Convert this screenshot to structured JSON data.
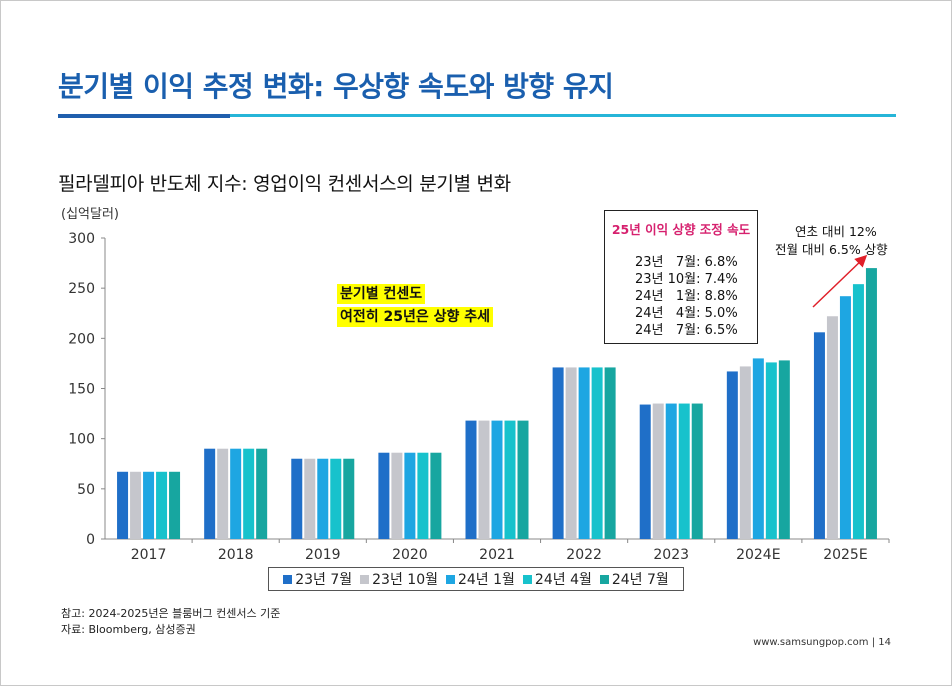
{
  "title": "분기별 이익 추정 변화: 우상향 속도와 방향 유지",
  "subtitle": "필라델피아 반도체 지수: 영업이익 컨센서스의 분기별 변화",
  "unit": "(십억달러)",
  "highlight": {
    "line1": "분기별 컨센도",
    "line2": "여전히 25년은 상향 추세"
  },
  "revision_box": {
    "title": "25년 이익 상향 조정 속도",
    "lines": [
      "23년   7월: 6.8%",
      "23년 10월: 7.4%",
      "24년   1월: 8.8%",
      "24년   4월: 5.0%",
      "24년   7월: 6.5%"
    ]
  },
  "annotation": {
    "line1": "연초 대비 12%",
    "line2": "전월 대비 6.5% 상향"
  },
  "footnote": "참고: 2024-2025년은 블룸버그 컨센서스 기준",
  "source": "자료: Bloomberg, 삼성증권",
  "page_footer": "www.samsungpop.com | 14",
  "colors": {
    "title": "#1a5fae",
    "arrow": "#e0202a"
  },
  "chart_data": {
    "type": "bar",
    "categories": [
      "2017",
      "2018",
      "2019",
      "2020",
      "2021",
      "2022",
      "2023",
      "2024E",
      "2025E"
    ],
    "series": [
      {
        "name": "23년 7월",
        "color": "#1f6fc8",
        "values": [
          67,
          90,
          80,
          86,
          118,
          171,
          134,
          167,
          206
        ]
      },
      {
        "name": "23년 10월",
        "color": "#c5c6cc",
        "values": [
          67,
          90,
          80,
          86,
          118,
          171,
          135,
          172,
          222
        ]
      },
      {
        "name": "24년 1월",
        "color": "#1ea6e2",
        "values": [
          67,
          90,
          80,
          86,
          118,
          171,
          135,
          180,
          242
        ]
      },
      {
        "name": "24년 4월",
        "color": "#17c2cc",
        "values": [
          67,
          90,
          80,
          86,
          118,
          171,
          135,
          176,
          254
        ]
      },
      {
        "name": "24년 7월",
        "color": "#17a6a0",
        "values": [
          67,
          90,
          80,
          86,
          118,
          171,
          135,
          178,
          270
        ]
      }
    ],
    "yticks": [
      0,
      50,
      100,
      150,
      200,
      250,
      300
    ],
    "ylim": [
      0,
      300
    ],
    "xlabel": "",
    "ylabel": "(십억달러)",
    "legend": "bottom"
  }
}
